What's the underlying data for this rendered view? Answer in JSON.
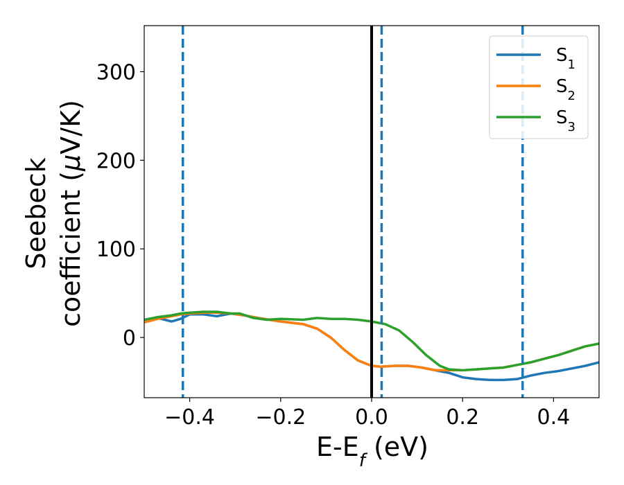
{
  "chart_data": {
    "type": "line",
    "xlabel": "E-E",
    "xlabel_sub": "f",
    "xlabel_unit": " (eV)",
    "ylabel_line1": "Seebeck",
    "ylabel_line2_prefix": "coefficient  (",
    "ylabel_line2_mu": "μ",
    "ylabel_line2_suffix": "V/K)",
    "xlim": [
      -0.5,
      0.5
    ],
    "ylim": [
      -68,
      352
    ],
    "xticks": [
      -0.4,
      -0.2,
      0.0,
      0.2,
      0.4
    ],
    "xtick_labels": [
      "−0.4",
      "−0.2",
      "0.0",
      "0.2",
      "0.4"
    ],
    "yticks": [
      0,
      100,
      200,
      300
    ],
    "ytick_labels": [
      "0",
      "100",
      "200",
      "300"
    ],
    "grid": false,
    "legend_position": "top-right",
    "vertical_lines": [
      {
        "x": 0.0,
        "style": "solid",
        "color": "#000000"
      },
      {
        "x": -0.415,
        "style": "dashed",
        "color": "#1f77b4"
      },
      {
        "x": 0.022,
        "style": "dashed",
        "color": "#1f77b4"
      },
      {
        "x": 0.332,
        "style": "dashed",
        "color": "#1f77b4"
      }
    ],
    "series": [
      {
        "name": "S",
        "sub": "1",
        "color": "#1f77b4",
        "x": [
          -0.5,
          -0.47,
          -0.44,
          -0.42,
          -0.4,
          -0.37,
          -0.34,
          -0.31,
          -0.28,
          -0.25,
          -0.2,
          -0.15,
          -0.12,
          -0.09,
          -0.06,
          -0.03,
          0.0,
          0.02,
          0.05,
          0.08,
          0.11,
          0.14,
          0.17,
          0.2,
          0.23,
          0.26,
          0.29,
          0.32,
          0.35,
          0.38,
          0.41,
          0.44,
          0.47,
          0.5
        ],
        "y": [
          20,
          22,
          18,
          21,
          26,
          26,
          24,
          27,
          25,
          22,
          18,
          15,
          10,
          0,
          -14,
          -26,
          -32,
          -33,
          -32,
          -32,
          -34,
          -37,
          -40,
          -45,
          -47,
          -48,
          -48,
          -47,
          -43,
          -40,
          -38,
          -35,
          -32,
          -28
        ]
      },
      {
        "name": "S",
        "sub": "2",
        "color": "#ff7f0e",
        "x": [
          -0.5,
          -0.47,
          -0.44,
          -0.42,
          -0.4,
          -0.37,
          -0.34,
          -0.31,
          -0.28,
          -0.25,
          -0.2,
          -0.15,
          -0.12,
          -0.09,
          -0.06,
          -0.03,
          0.0,
          0.02,
          0.05,
          0.08,
          0.11,
          0.14,
          0.17,
          0.2,
          0.23,
          0.26,
          0.29,
          0.32,
          0.35,
          0.38,
          0.41,
          0.44,
          0.47,
          0.5
        ],
        "y": [
          17,
          21,
          24,
          26,
          27,
          28,
          28,
          27,
          25,
          22,
          18,
          15,
          10,
          0,
          -14,
          -26,
          -32,
          -33,
          -32,
          -32,
          -34,
          -37,
          -37,
          -37,
          -36,
          -35,
          -34,
          -31,
          -28,
          -24,
          -20,
          -15,
          -10,
          -7
        ]
      },
      {
        "name": "S",
        "sub": "3",
        "color": "#2ca02c",
        "x": [
          -0.5,
          -0.47,
          -0.44,
          -0.42,
          -0.4,
          -0.37,
          -0.34,
          -0.31,
          -0.29,
          -0.26,
          -0.23,
          -0.2,
          -0.15,
          -0.12,
          -0.09,
          -0.06,
          -0.03,
          0.0,
          0.03,
          0.06,
          0.09,
          0.12,
          0.15,
          0.17,
          0.2,
          0.23,
          0.26,
          0.29,
          0.32,
          0.35,
          0.38,
          0.41,
          0.44,
          0.47,
          0.5
        ],
        "y": [
          20,
          23,
          25,
          27,
          28,
          29,
          29,
          27,
          27,
          22,
          20,
          21,
          20,
          22,
          21,
          21,
          20,
          18,
          15,
          8,
          -5,
          -20,
          -32,
          -36,
          -37,
          -36,
          -35,
          -34,
          -31,
          -28,
          -24,
          -20,
          -15,
          -10,
          -7
        ]
      }
    ]
  }
}
